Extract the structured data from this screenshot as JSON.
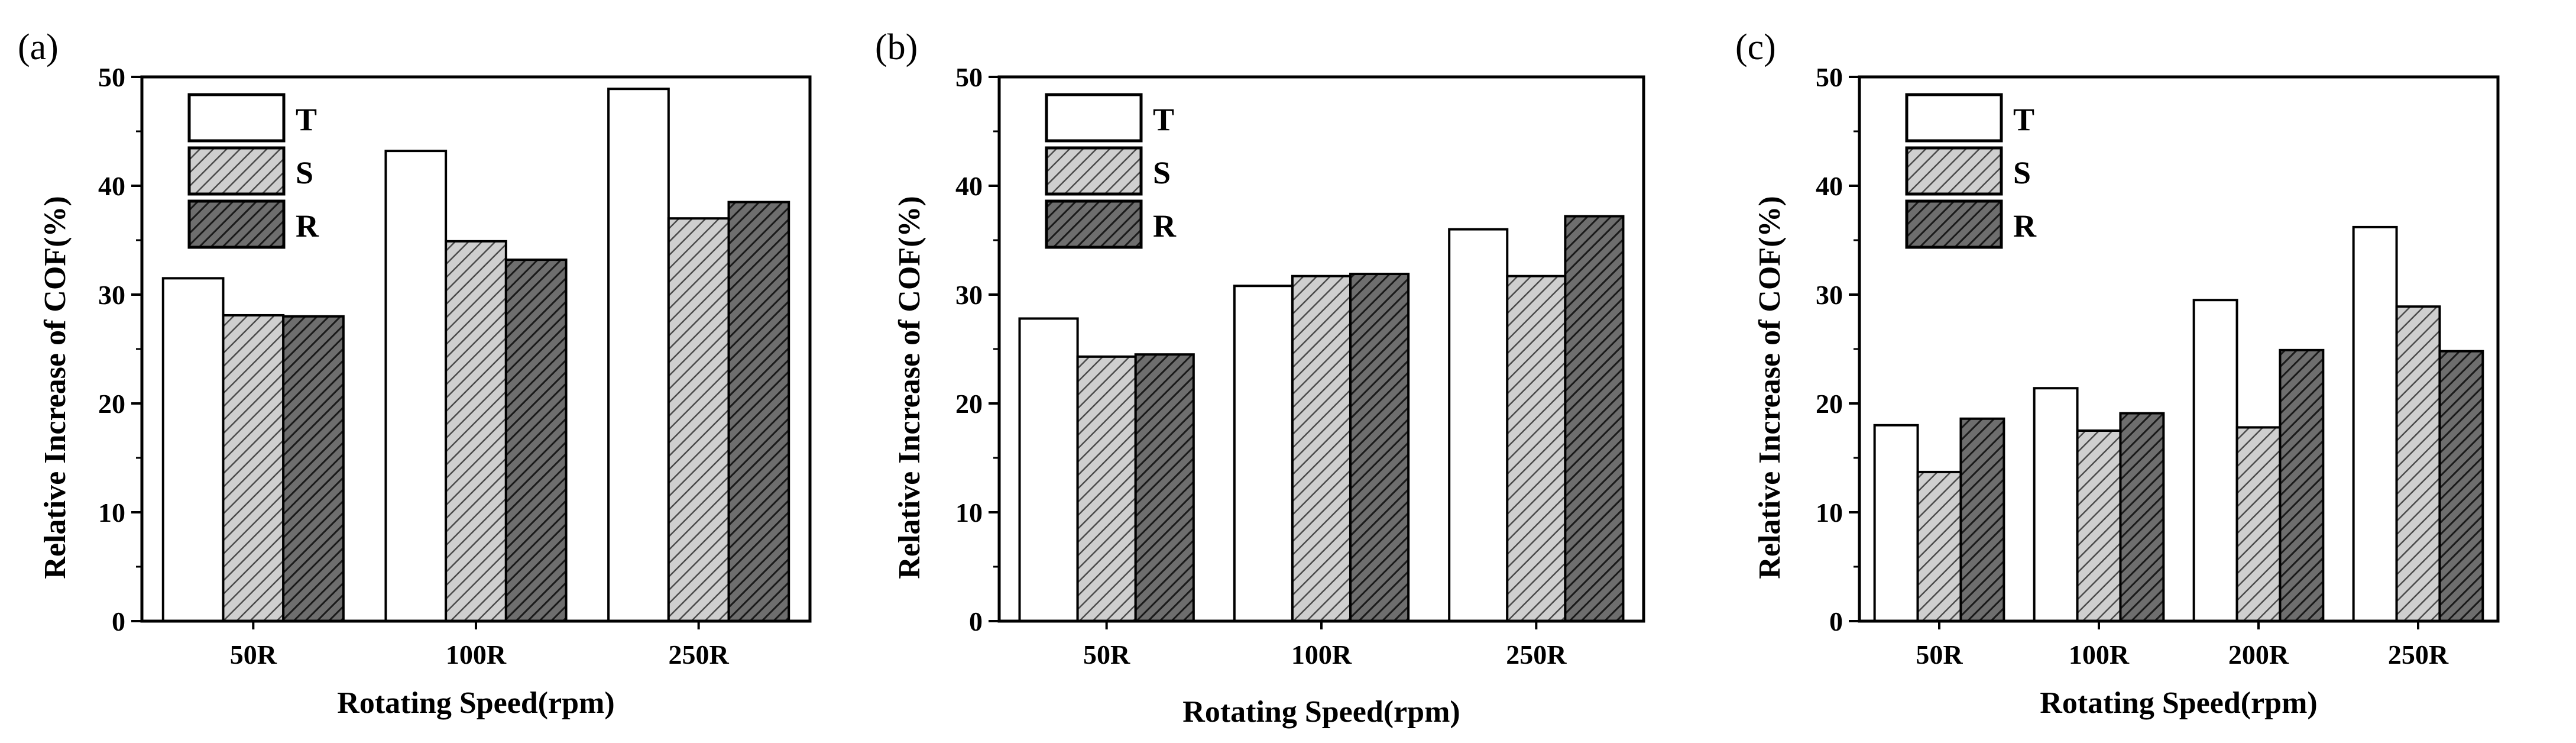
{
  "chart_data": [
    {
      "type": "bar",
      "panel_label": "(a)",
      "categories": [
        "50R",
        "100R",
        "250R"
      ],
      "series": [
        {
          "name": "T",
          "values": [
            31.5,
            43.2,
            48.9
          ]
        },
        {
          "name": "S",
          "values": [
            28.1,
            34.9,
            37.0
          ]
        },
        {
          "name": "R",
          "values": [
            28.0,
            33.2,
            38.5
          ]
        }
      ],
      "xlabel": "Rotating Speed(rpm)",
      "ylabel": "Relative Increase of COF(%)",
      "ylim": [
        0,
        50
      ],
      "yticks": [
        0,
        10,
        20,
        30,
        40,
        50
      ],
      "legend_position": "top-left"
    },
    {
      "type": "bar",
      "panel_label": "(b)",
      "categories": [
        "50R",
        "100R",
        "250R"
      ],
      "series": [
        {
          "name": "T",
          "values": [
            27.8,
            30.8,
            36.0
          ]
        },
        {
          "name": "S",
          "values": [
            24.3,
            31.7,
            31.7
          ]
        },
        {
          "name": "R",
          "values": [
            24.5,
            31.9,
            37.2
          ]
        }
      ],
      "xlabel": "Rotating Speed(rpm)",
      "ylabel": "Relative Increase of COF(%)",
      "ylim": [
        0,
        50
      ],
      "yticks": [
        0,
        10,
        20,
        30,
        40,
        50
      ],
      "legend_position": "top-left"
    },
    {
      "type": "bar",
      "panel_label": "(c)",
      "categories": [
        "50R",
        "100R",
        "200R",
        "250R"
      ],
      "series": [
        {
          "name": "T",
          "values": [
            18.0,
            21.4,
            29.5,
            36.2
          ]
        },
        {
          "name": "S",
          "values": [
            13.7,
            17.5,
            17.8,
            28.9
          ]
        },
        {
          "name": "R",
          "values": [
            18.6,
            19.1,
            24.9,
            24.8
          ]
        }
      ],
      "xlabel": "Rotating Speed(rpm)",
      "ylabel": "Relative Increase of COF(%)",
      "ylim": [
        0,
        50
      ],
      "yticks": [
        0,
        10,
        20,
        30,
        40,
        50
      ],
      "legend_position": "top-left"
    }
  ]
}
